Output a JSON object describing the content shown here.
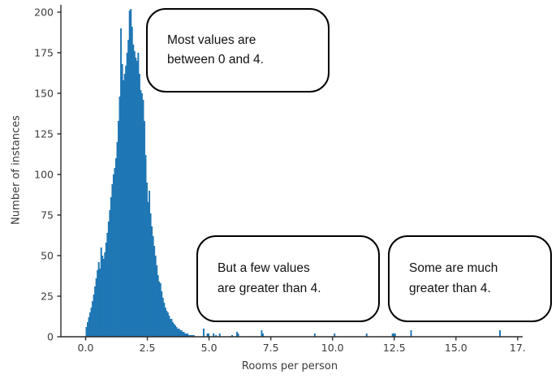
{
  "chart_data": {
    "type": "bar",
    "subtype": "histogram",
    "title": "",
    "xlabel": "Rooms per person",
    "ylabel": "Number of instances",
    "xlim": [
      -1.0,
      17.7
    ],
    "ylim": [
      0,
      205
    ],
    "grid": false,
    "legend": null,
    "bar_color": "#1f77b4",
    "axis_color": "#2b2b2b",
    "tick_text_color": "#3b3b3b",
    "x_tick_values": [
      0,
      2.5,
      5,
      7.5,
      10,
      12.5,
      15,
      17.5
    ],
    "x_tick_labels": [
      "0.0",
      "2.5",
      "5.0",
      "7.5",
      "10.0",
      "12.5",
      "15.0",
      "17."
    ],
    "y_tick_values": [
      0,
      25,
      50,
      75,
      100,
      125,
      150,
      175,
      200
    ],
    "y_tick_labels": [
      "0",
      "25",
      "50",
      "75",
      "100",
      "125",
      "150",
      "175",
      "200"
    ],
    "bin_width": 0.05,
    "main_start_x": 0.0,
    "main_heights": [
      6,
      9,
      12,
      15,
      18,
      22,
      26,
      31,
      36,
      41,
      46,
      42,
      55,
      50,
      48,
      52,
      58,
      64,
      71,
      78,
      86,
      94,
      100,
      104,
      110,
      120,
      133,
      148,
      190,
      168,
      158,
      162,
      167,
      175,
      183,
      201,
      202,
      191,
      180,
      176,
      172,
      170,
      175,
      162,
      152,
      150,
      146,
      133,
      112,
      95,
      83,
      90,
      76,
      68,
      62,
      56,
      50,
      44,
      38,
      34,
      33,
      28,
      24,
      21,
      18,
      16,
      15,
      13,
      11,
      11,
      9,
      8,
      7,
      6,
      5,
      5,
      4,
      4,
      3,
      3,
      2,
      2,
      2,
      1,
      1,
      1,
      1,
      1
    ],
    "outlier_bins": [
      {
        "x": 4.75,
        "h": 5
      },
      {
        "x": 4.9,
        "h": 2
      },
      {
        "x": 4.95,
        "h": 2
      },
      {
        "x": 5.15,
        "h": 2
      },
      {
        "x": 5.25,
        "h": 1
      },
      {
        "x": 5.4,
        "h": 2
      },
      {
        "x": 5.9,
        "h": 1
      },
      {
        "x": 6.1,
        "h": 3
      },
      {
        "x": 6.15,
        "h": 2
      },
      {
        "x": 7.1,
        "h": 4
      },
      {
        "x": 7.15,
        "h": 2
      },
      {
        "x": 9.25,
        "h": 2
      },
      {
        "x": 10.05,
        "h": 2
      },
      {
        "x": 11.35,
        "h": 2
      },
      {
        "x": 12.4,
        "h": 2
      },
      {
        "x": 12.45,
        "h": 2
      },
      {
        "x": 12.5,
        "h": 2
      },
      {
        "x": 13.15,
        "h": 4
      },
      {
        "x": 16.75,
        "h": 4
      }
    ]
  },
  "annotations": [
    {
      "text": "Most values are\nbetween 0 and 4."
    },
    {
      "text": "But a few values\nare greater than 4."
    },
    {
      "text": "Some are much\ngreater than 4."
    }
  ]
}
